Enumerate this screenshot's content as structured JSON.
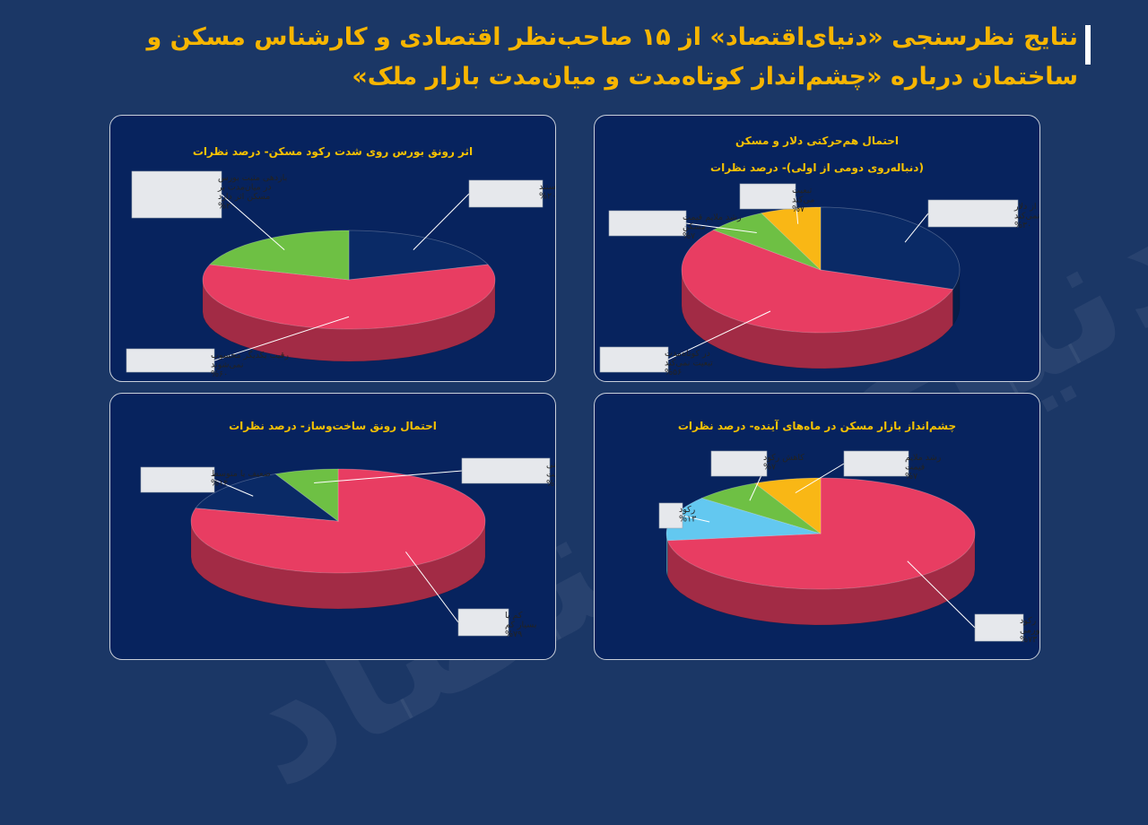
{
  "header": {
    "title_line1": "نتایج نظرسنجی «دنیای‌اقتصاد» از ۱۵ صاحب‌نظر اقتصادی و کارشناس مسکن و",
    "title_line2": "ساختمان درباره «چشم‌انداز کوتاه‌مدت و میان‌مدت بازار ملک»"
  },
  "watermark": "دنیای اقتصاد",
  "colors": {
    "background": "#1b3766",
    "panel": "#07235e",
    "title": "#f7b500",
    "red": "#e83d62",
    "green": "#6ec044",
    "yellow": "#f9b715",
    "light_blue": "#63c8f0",
    "navy": "#0a2a66"
  },
  "chart_data": [
    {
      "id": "top_left",
      "type": "pie",
      "title": [
        "اثر رونق بورس روی شدت رکود مسکن- درصد نظرات"
      ],
      "slices": [
        {
          "label": "رقیب هم هستند",
          "value": 20,
          "text": "%۲۰",
          "color": "#0a2a66"
        },
        {
          "label": "رقیب یکدیگر محسوب نمی‌شوند",
          "value": 60,
          "text": "%۶۰",
          "color": "#e83d62"
        },
        {
          "label": "بازدهی مثبت بورس در میان‌مدت بر مسکن اثر دارد",
          "value": 20,
          "text": "%۲۰",
          "color": "#6ec044"
        }
      ]
    },
    {
      "id": "top_right",
      "type": "pie",
      "title": [
        "احتمال هم‌حرکتی دلار و مسکن",
        "(دنباله‌روی دومی از اولی)- درصد نظرات"
      ],
      "slices": [
        {
          "label": "تورم مسکن از دلار تبعیت نمی‌کند",
          "value": 30,
          "text": "%۳۰",
          "color": "#0a2a66"
        },
        {
          "label": "در کوتاه‌مدت تبعیت نمی‌کند",
          "value": 56,
          "text": "%۵۶",
          "color": "#e83d62"
        },
        {
          "label": "رشد ملایم قیمت مسکن",
          "value": 7,
          "text": "%۷",
          "color": "#6ec044"
        },
        {
          "label": "تبعیت می‌کند",
          "value": 7,
          "text": "%۷",
          "color": "#f9b715"
        }
      ]
    },
    {
      "id": "bottom_left",
      "type": "pie",
      "title": [
        "احتمال رونق ساخت‌وساز- درصد نظرات"
      ],
      "slices": [
        {
          "label": "کم یا بسیار کم",
          "value": 79,
          "text": "%۷۹",
          "color": "#e83d62"
        },
        {
          "label": "ضعیف یا متوسط",
          "value": 14,
          "text": "%۱۴",
          "color": "#0a2a66"
        },
        {
          "label": "قابل پیش‌بینی نیست",
          "value": 7,
          "text": "%۷",
          "color": "#6ec044"
        }
      ]
    },
    {
      "id": "bottom_right",
      "type": "pie",
      "title": [
        "چشم‌انداز بازار مسکن در ماه‌های آینده- درصد نظرات"
      ],
      "slices": [
        {
          "label": "رکود تورمی",
          "value": 73,
          "text": "%۷۳",
          "color": "#e83d62"
        },
        {
          "label": "رکود",
          "value": 13,
          "text": "%۱۳",
          "color": "#63c8f0"
        },
        {
          "label": "کاهش رکود",
          "value": 7,
          "text": "%۷",
          "color": "#6ec044"
        },
        {
          "label": "رشد ملایم قیمت",
          "value": 7,
          "text": "%۷",
          "color": "#f9b715"
        }
      ]
    }
  ]
}
